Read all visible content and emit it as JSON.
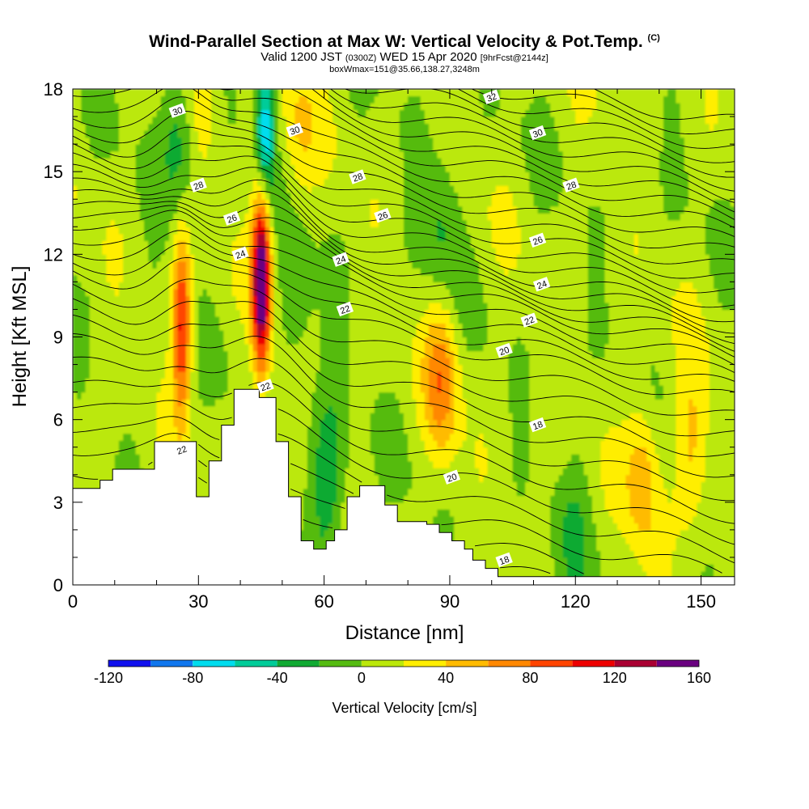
{
  "titles": {
    "main": "Wind-Parallel Section at Max W: Vertical Velocity & Pot.Temp.",
    "copyright": "(C)",
    "valid_prefix": "Valid 1200 JST",
    "valid_zulu": "(0300Z)",
    "valid_date": "WED 15 Apr 2020",
    "forecast": "[9hrFcst@2144z]",
    "box_info": "boxWmax=151@35.66,138.27,3248m"
  },
  "chart_data": {
    "type": "heatmap",
    "title": "Wind-Parallel Section at Max W: Vertical Velocity & Pot.Temp.",
    "xlabel": "Distance [nm]",
    "ylabel": "Height [Kft MSL]",
    "xlim": [
      0,
      158
    ],
    "ylim": [
      0,
      18
    ],
    "x_ticks": [
      0,
      30,
      60,
      90,
      120,
      150
    ],
    "y_ticks": [
      0,
      3,
      6,
      9,
      12,
      15,
      18
    ],
    "colorbar": {
      "label": "Vertical Velocity [cm/s]",
      "bounds": [
        -120,
        -100,
        -80,
        -60,
        -40,
        -20,
        0,
        20,
        40,
        60,
        80,
        100,
        120,
        140,
        160
      ],
      "tick_labels": [
        -120,
        -80,
        -40,
        0,
        40,
        80,
        120,
        160
      ],
      "colors": [
        "#1111ee",
        "#1177ee",
        "#00ddee",
        "#00cc99",
        "#11aa33",
        "#55bb11",
        "#bbe80a",
        "#ffee00",
        "#ffbb00",
        "#ff8800",
        "#ff4400",
        "#ee0000",
        "#aa0033",
        "#6a0080"
      ]
    },
    "terrain": [
      [
        0,
        3.5
      ],
      [
        6.5,
        3.5
      ],
      [
        6.5,
        3.8
      ],
      [
        9.5,
        3.8
      ],
      [
        9.5,
        4.2
      ],
      [
        19.5,
        4.2
      ],
      [
        19.5,
        5.2
      ],
      [
        29.5,
        5.2
      ],
      [
        29.5,
        3.2
      ],
      [
        32.5,
        3.2
      ],
      [
        32.5,
        4.5
      ],
      [
        35.5,
        4.5
      ],
      [
        35.5,
        5.8
      ],
      [
        38.5,
        5.8
      ],
      [
        38.5,
        7.1
      ],
      [
        44.5,
        7.1
      ],
      [
        44.5,
        6.8
      ],
      [
        48.5,
        6.8
      ],
      [
        48.5,
        5.2
      ],
      [
        51.5,
        5.2
      ],
      [
        51.5,
        3.2
      ],
      [
        54.5,
        3.2
      ],
      [
        54.5,
        1.6
      ],
      [
        57.5,
        1.6
      ],
      [
        57.5,
        1.3
      ],
      [
        60.5,
        1.3
      ],
      [
        60.5,
        1.6
      ],
      [
        62.5,
        1.6
      ],
      [
        62.5,
        2.0
      ],
      [
        65.5,
        2.0
      ],
      [
        65.5,
        3.2
      ],
      [
        68.5,
        3.2
      ],
      [
        68.5,
        3.6
      ],
      [
        74.5,
        3.6
      ],
      [
        74.5,
        2.9
      ],
      [
        77.5,
        2.9
      ],
      [
        77.5,
        2.3
      ],
      [
        84.5,
        2.3
      ],
      [
        84.5,
        2.2
      ],
      [
        87.5,
        2.2
      ],
      [
        87.5,
        1.9
      ],
      [
        90.5,
        1.9
      ],
      [
        90.5,
        1.6
      ],
      [
        93.5,
        1.6
      ],
      [
        93.5,
        1.3
      ],
      [
        95.5,
        1.3
      ],
      [
        95.5,
        0.9
      ],
      [
        98.5,
        0.9
      ],
      [
        98.5,
        0.6
      ],
      [
        101.5,
        0.6
      ],
      [
        101.5,
        0.3
      ],
      [
        158,
        0.3
      ]
    ],
    "updrafts": [
      {
        "x": 26,
        "y": 9.5,
        "peak_cm_s": 100
      },
      {
        "x": 45,
        "y": 11,
        "peak_cm_s": 160
      },
      {
        "x": 88,
        "y": 7.5,
        "peak_cm_s": 60
      },
      {
        "x": 136,
        "y": 4,
        "peak_cm_s": 45
      },
      {
        "x": 148,
        "y": 5,
        "peak_cm_s": 40
      },
      {
        "x": 54,
        "y": 16.5,
        "peak_cm_s": 30
      },
      {
        "x": 30,
        "y": 17,
        "peak_cm_s": 25
      }
    ],
    "downdrafts": [
      {
        "x": 46,
        "y": 16.5,
        "peak_cm_s": -90
      },
      {
        "x": 26,
        "y": 16,
        "peak_cm_s": -45
      },
      {
        "x": 61,
        "y": 4,
        "peak_cm_s": -45
      },
      {
        "x": 53,
        "y": 10,
        "peak_cm_s": -25
      },
      {
        "x": 88,
        "y": 13,
        "peak_cm_s": -30
      },
      {
        "x": 120,
        "y": 2,
        "peak_cm_s": -20
      }
    ],
    "theta_contours": [
      {
        "value": 18,
        "label_at": [
          [
            111,
            5.8
          ],
          [
            103,
            0.9
          ]
        ]
      },
      {
        "value": 20,
        "label_at": [
          [
            103,
            8.5
          ],
          [
            90.5,
            3.9
          ]
        ]
      },
      {
        "value": 22,
        "label_at": [
          [
            109,
            9.6
          ],
          [
            65,
            10.0
          ],
          [
            46,
            7.2
          ],
          [
            26,
            4.9
          ]
        ]
      },
      {
        "value": 24,
        "label_at": [
          [
            112,
            10.9
          ],
          [
            64,
            11.8
          ],
          [
            40,
            12.0
          ]
        ]
      },
      {
        "value": 26,
        "label_at": [
          [
            111,
            12.5
          ],
          [
            74,
            13.4
          ],
          [
            38,
            13.3
          ]
        ]
      },
      {
        "value": 28,
        "label_at": [
          [
            119,
            14.5
          ],
          [
            68,
            14.8
          ],
          [
            30,
            14.5
          ]
        ]
      },
      {
        "value": 30,
        "label_at": [
          [
            111,
            16.4
          ],
          [
            53,
            16.5
          ],
          [
            25,
            17.2
          ]
        ]
      },
      {
        "value": 32,
        "label_at": [
          [
            100,
            17.7
          ]
        ]
      }
    ]
  }
}
